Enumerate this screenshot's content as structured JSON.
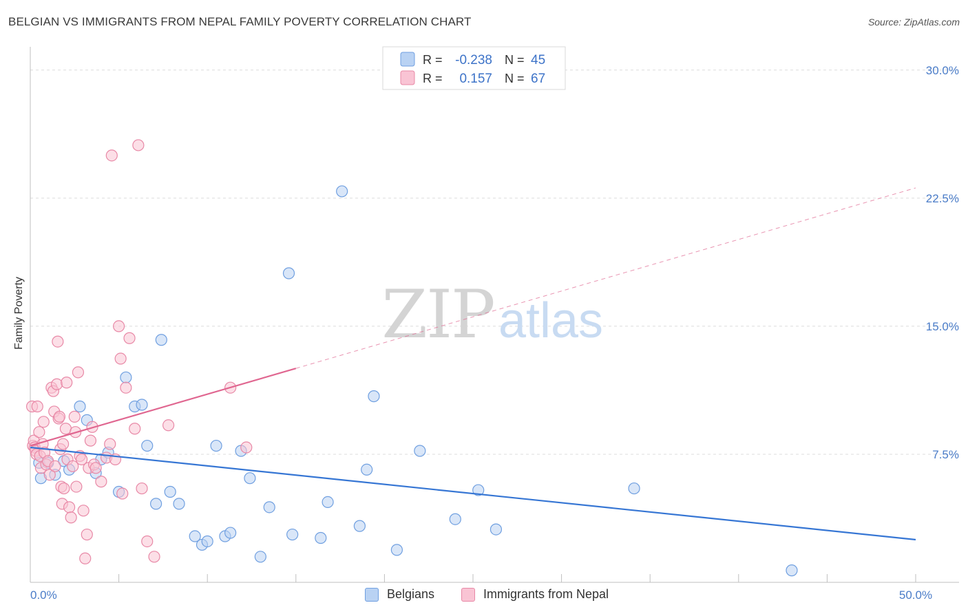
{
  "chart_data": {
    "type": "scatter",
    "title": "BELGIAN VS IMMIGRANTS FROM NEPAL FAMILY POVERTY CORRELATION CHART",
    "source": "Source: ZipAtlas.com",
    "xlabel": "",
    "ylabel": "Family Poverty",
    "xlim": [
      0,
      50
    ],
    "ylim": [
      0,
      31
    ],
    "x_tick_labels": [
      {
        "value": 0,
        "label": "0.0%"
      },
      {
        "value": 50,
        "label": "50.0%"
      }
    ],
    "y_tick_labels": [
      {
        "value": 7.5,
        "label": "7.5%"
      },
      {
        "value": 15,
        "label": "15.0%"
      },
      {
        "value": 22.5,
        "label": "22.5%"
      },
      {
        "value": 30,
        "label": "30.0%"
      }
    ],
    "watermark": {
      "zip": "ZIP",
      "atlas": "atlas"
    },
    "legend": [
      {
        "r_label": "R =",
        "r_value": "-0.238",
        "n_label": "N =",
        "n_value": "45"
      },
      {
        "r_label": "R =",
        "r_value": "0.157",
        "n_label": "N =",
        "n_value": "67"
      }
    ],
    "series": [
      {
        "name": "Belgians",
        "color": "#6f9fe0",
        "fill": "#b9d2f3",
        "trend": {
          "x0": 0,
          "y0": 7.9,
          "x1": 50,
          "y1": 2.5,
          "solid_to": 50
        },
        "points": [
          [
            0.5,
            7.0
          ],
          [
            0.6,
            6.1
          ],
          [
            1.0,
            7.0
          ],
          [
            1.4,
            6.3
          ],
          [
            1.9,
            7.1
          ],
          [
            2.2,
            6.6
          ],
          [
            2.8,
            10.3
          ],
          [
            3.2,
            9.5
          ],
          [
            3.7,
            6.4
          ],
          [
            4.0,
            7.2
          ],
          [
            4.4,
            7.6
          ],
          [
            5.0,
            5.3
          ],
          [
            5.4,
            12.0
          ],
          [
            5.9,
            10.3
          ],
          [
            6.3,
            10.4
          ],
          [
            6.6,
            8.0
          ],
          [
            7.1,
            4.6
          ],
          [
            7.4,
            14.2
          ],
          [
            7.9,
            5.3
          ],
          [
            8.4,
            4.6
          ],
          [
            9.3,
            2.7
          ],
          [
            9.7,
            2.2
          ],
          [
            10.0,
            2.4
          ],
          [
            10.5,
            8.0
          ],
          [
            11.0,
            2.7
          ],
          [
            11.3,
            2.9
          ],
          [
            11.9,
            7.7
          ],
          [
            12.4,
            6.1
          ],
          [
            13.0,
            1.5
          ],
          [
            13.5,
            4.4
          ],
          [
            14.6,
            18.1
          ],
          [
            14.8,
            2.8
          ],
          [
            16.4,
            2.6
          ],
          [
            16.8,
            4.7
          ],
          [
            17.6,
            22.9
          ],
          [
            18.6,
            3.3
          ],
          [
            19.0,
            6.6
          ],
          [
            19.4,
            10.9
          ],
          [
            20.7,
            1.9
          ],
          [
            22.0,
            7.7
          ],
          [
            24.0,
            3.7
          ],
          [
            25.3,
            5.4
          ],
          [
            26.3,
            3.1
          ],
          [
            34.1,
            5.5
          ],
          [
            43.0,
            0.7
          ]
        ]
      },
      {
        "name": "Immigrants from Nepal",
        "color": "#e888a6",
        "fill": "#f9c4d4",
        "trend": {
          "x0": 0,
          "y0": 8.0,
          "x1": 50,
          "y1": 23.1,
          "solid_to": 15.0
        },
        "points": [
          [
            0.1,
            10.3
          ],
          [
            0.15,
            8.0
          ],
          [
            0.2,
            8.3
          ],
          [
            0.25,
            7.9
          ],
          [
            0.3,
            7.7
          ],
          [
            0.35,
            7.5
          ],
          [
            0.4,
            10.3
          ],
          [
            0.5,
            8.8
          ],
          [
            0.55,
            7.4
          ],
          [
            0.6,
            6.7
          ],
          [
            0.7,
            8.1
          ],
          [
            0.75,
            9.4
          ],
          [
            0.8,
            7.6
          ],
          [
            0.9,
            6.9
          ],
          [
            1.0,
            7.1
          ],
          [
            1.1,
            6.3
          ],
          [
            1.2,
            11.4
          ],
          [
            1.3,
            11.2
          ],
          [
            1.35,
            10.0
          ],
          [
            1.4,
            6.8
          ],
          [
            1.5,
            11.6
          ],
          [
            1.55,
            14.1
          ],
          [
            1.6,
            9.6
          ],
          [
            1.65,
            9.7
          ],
          [
            1.7,
            7.8
          ],
          [
            1.75,
            5.6
          ],
          [
            1.8,
            4.6
          ],
          [
            1.85,
            8.1
          ],
          [
            1.9,
            5.5
          ],
          [
            2.0,
            9.0
          ],
          [
            2.05,
            11.7
          ],
          [
            2.1,
            7.2
          ],
          [
            2.2,
            4.4
          ],
          [
            2.3,
            3.8
          ],
          [
            2.4,
            6.8
          ],
          [
            2.5,
            9.7
          ],
          [
            2.55,
            8.8
          ],
          [
            2.6,
            5.6
          ],
          [
            2.7,
            12.3
          ],
          [
            2.8,
            7.4
          ],
          [
            2.9,
            7.2
          ],
          [
            3.0,
            4.2
          ],
          [
            3.1,
            1.4
          ],
          [
            3.2,
            2.8
          ],
          [
            3.3,
            6.7
          ],
          [
            3.4,
            8.3
          ],
          [
            3.5,
            9.1
          ],
          [
            3.6,
            6.9
          ],
          [
            3.7,
            6.7
          ],
          [
            4.0,
            5.9
          ],
          [
            4.3,
            7.3
          ],
          [
            4.5,
            8.1
          ],
          [
            4.6,
            25.0
          ],
          [
            4.8,
            7.2
          ],
          [
            5.0,
            15.0
          ],
          [
            5.1,
            13.1
          ],
          [
            5.2,
            5.2
          ],
          [
            5.4,
            11.4
          ],
          [
            5.6,
            14.3
          ],
          [
            5.9,
            9.0
          ],
          [
            6.1,
            25.6
          ],
          [
            6.3,
            5.5
          ],
          [
            6.6,
            2.4
          ],
          [
            7.0,
            1.5
          ],
          [
            7.8,
            9.2
          ],
          [
            11.3,
            11.4
          ],
          [
            12.2,
            7.9
          ]
        ]
      }
    ]
  }
}
